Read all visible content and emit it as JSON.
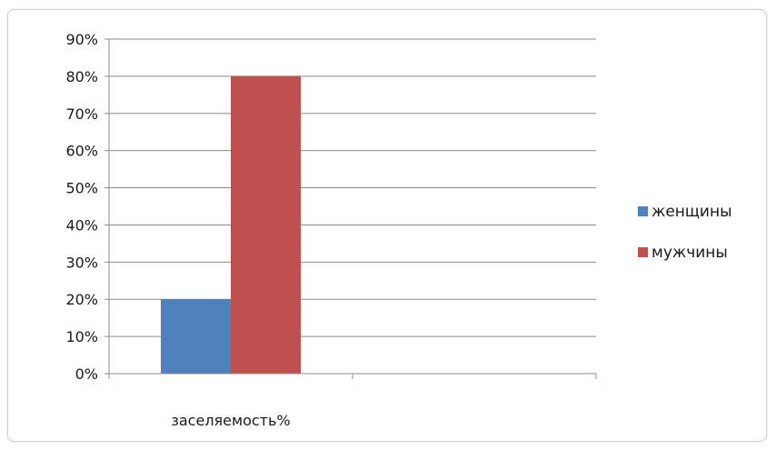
{
  "chart_data": {
    "type": "bar",
    "categories": [
      "заселяемость%"
    ],
    "series": [
      {
        "name": "женщины",
        "values": [
          0.2
        ],
        "color": "#4f81bd"
      },
      {
        "name": "мужчины",
        "values": [
          0.8
        ],
        "color": "#c0504d"
      }
    ],
    "ylim": [
      0,
      0.9
    ],
    "ytick_labels": [
      "0%",
      "10%",
      "20%",
      "30%",
      "40%",
      "50%",
      "60%",
      "70%",
      "80%",
      "90%"
    ],
    "grid": true,
    "legend_position": "right",
    "title": "",
    "xlabel": "",
    "ylabel": ""
  }
}
